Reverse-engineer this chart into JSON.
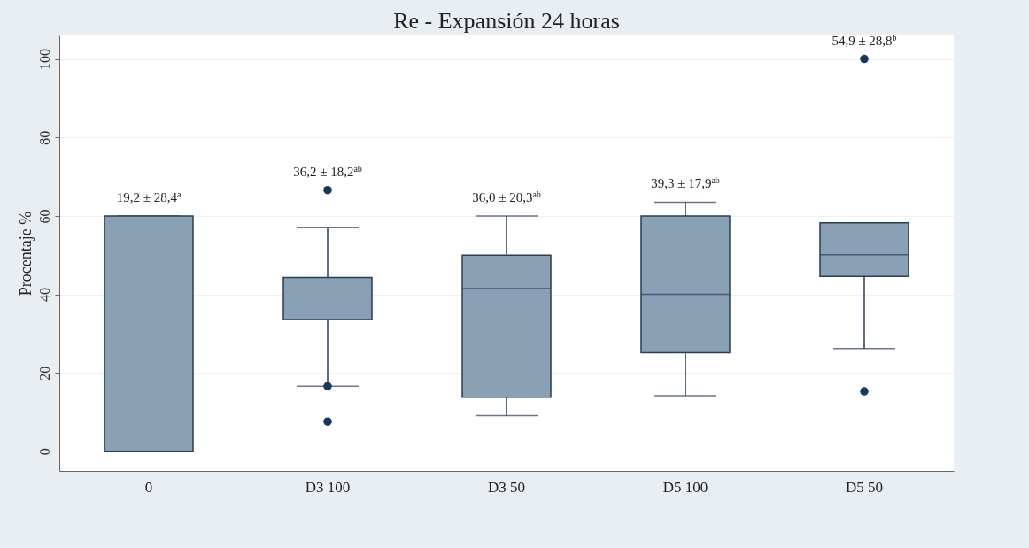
{
  "chart_data": {
    "type": "box",
    "title": "Re - Expansión 24 horas",
    "ylabel": "Procentaje %",
    "categories": [
      "0",
      "D3 100",
      "D3 50",
      "D5 100",
      "D5 50"
    ],
    "color": "#8aa0b5",
    "boxes": [
      {
        "low": 0,
        "q1": 0,
        "median": 0,
        "q3": 60,
        "high": 60
      },
      {
        "low": 16.6,
        "q1": 33.5,
        "median": 33.5,
        "q3": 44.3,
        "high": 57.1,
        "outliers": [
          66.6,
          16.6,
          7.6
        ]
      },
      {
        "low": 9.1,
        "q1": 13.8,
        "median": 41.5,
        "q3": 50,
        "high": 60
      },
      {
        "low": 14.2,
        "q1": 25.1,
        "median": 40,
        "q3": 60,
        "high": 63.5
      },
      {
        "low": 26.2,
        "q1": 44.6,
        "median": 50.1,
        "q3": 58.2,
        "high": 58.2,
        "outliers": [
          100,
          15.3
        ]
      }
    ],
    "ylim": [
      -5,
      106
    ],
    "yticks": [
      0,
      20,
      40,
      60,
      80,
      100
    ],
    "grid": "y",
    "annotations": [
      "19,2 ± 28,4$^{a}$",
      "36,2 ± 18,2$^{ab}$",
      "36,0 ± 20,3$^{ab}$",
      "39,3 ± 17,9$^{ab}$",
      "54,9 ± 28,8$^{b}$"
    ]
  }
}
